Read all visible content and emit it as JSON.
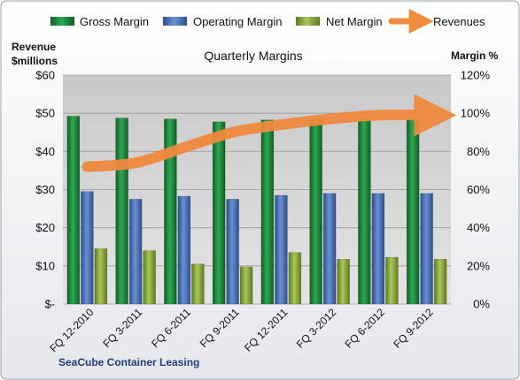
{
  "chart_data": {
    "type": "bar",
    "title": "Quarterly Margins",
    "footer": "SeaCube Container Leasing",
    "y_left": {
      "label_line1": "Revenue",
      "label_line2": "$millions",
      "range": [
        0,
        60
      ],
      "ticks": [
        0,
        10,
        20,
        30,
        40,
        50,
        60
      ],
      "tick_labels": [
        "$-",
        "$10",
        "$20",
        "$30",
        "$40",
        "$50",
        "$60"
      ]
    },
    "y_right": {
      "label": "Margin %",
      "range": [
        0,
        120
      ],
      "ticks": [
        0,
        20,
        40,
        60,
        80,
        100,
        120
      ],
      "tick_labels": [
        "0%",
        "20%",
        "40%",
        "60%",
        "80%",
        "100%",
        "120%"
      ]
    },
    "categories": [
      "FQ 12-2010",
      "FQ 3-2011",
      "FQ 6-2011",
      "FQ 9-2011",
      "FQ 12-2011",
      "FQ 3-2012",
      "FQ 6-2012",
      "FQ 9-2012"
    ],
    "series": [
      {
        "name": "Gross Margin",
        "kind": "bar",
        "axis": "right",
        "color": "#1f8a3c",
        "values": [
          98.5,
          97.5,
          97,
          95.5,
          96.5,
          97,
          97,
          97
        ]
      },
      {
        "name": "Operating Margin",
        "kind": "bar",
        "axis": "right",
        "color": "#4a72b8",
        "values": [
          59,
          55,
          56.5,
          55,
          57,
          58,
          58,
          58
        ]
      },
      {
        "name": "Net Margin",
        "kind": "bar",
        "axis": "right",
        "color": "#8cac3a",
        "values": [
          29,
          28,
          21,
          19.5,
          27,
          23.5,
          24.5,
          23.5
        ]
      },
      {
        "name": "Revenues",
        "kind": "line",
        "axis": "left",
        "color": "#ef8a3e",
        "values": [
          36,
          37,
          41,
          45,
          47,
          48.5,
          49.5,
          49.5
        ]
      }
    ],
    "grid": true,
    "legend_position": "top"
  }
}
